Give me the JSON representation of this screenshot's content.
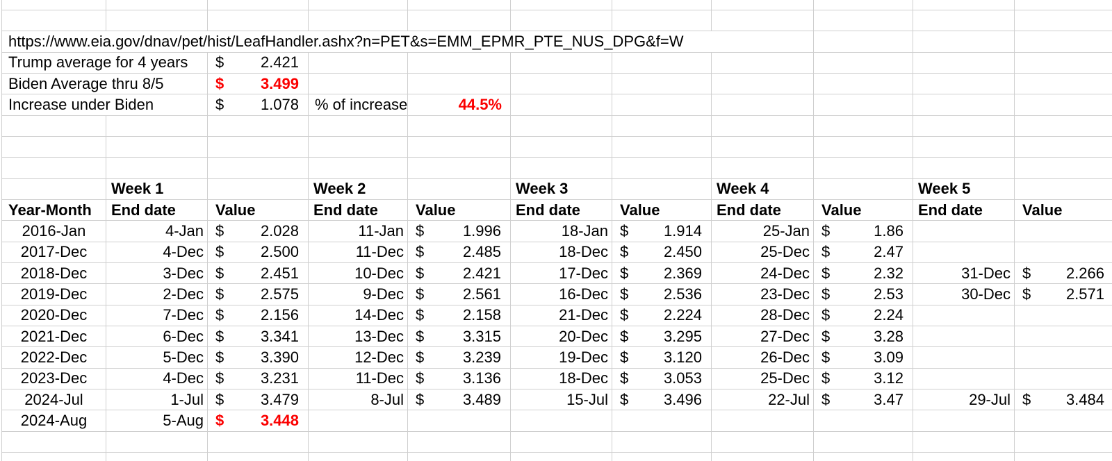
{
  "colors": {
    "text": "#000000",
    "red_accent": "#fb0000",
    "gridline": "#cfcfcf",
    "background": "#ffffff"
  },
  "currency_symbol": "$",
  "source_url": "https://www.eia.gov/dnav/pet/hist/LeafHandler.ashx?n=PET&s=EMM_EPMR_PTE_NUS_DPG&f=W",
  "summary": {
    "trump": {
      "label": "Trump average for 4 years",
      "value": "2.421"
    },
    "biden": {
      "label": "Biden Average thru 8/5",
      "value": "3.499"
    },
    "increase": {
      "label": "Increase under Biden",
      "value": "1.078"
    },
    "percent_label": "% of increase",
    "percent_value": "44.5%"
  },
  "table": {
    "week_headers": [
      "Week 1",
      "Week 2",
      "Week 3",
      "Week 4",
      "Week 5"
    ],
    "year_month_header": "Year-Month",
    "end_date_header": "End date",
    "value_header": "Value",
    "rows": [
      {
        "ym": "2016-Jan",
        "weeks": [
          {
            "d": "4-Jan",
            "v": "2.028"
          },
          {
            "d": "11-Jan",
            "v": "1.996"
          },
          {
            "d": "18-Jan",
            "v": "1.914"
          },
          {
            "d": "25-Jan",
            "v": "1.86"
          },
          null
        ]
      },
      {
        "ym": "2017-Dec",
        "weeks": [
          {
            "d": "4-Dec",
            "v": "2.500"
          },
          {
            "d": "11-Dec",
            "v": "2.485"
          },
          {
            "d": "18-Dec",
            "v": "2.450"
          },
          {
            "d": "25-Dec",
            "v": "2.47"
          },
          null
        ]
      },
      {
        "ym": "2018-Dec",
        "weeks": [
          {
            "d": "3-Dec",
            "v": "2.451"
          },
          {
            "d": "10-Dec",
            "v": "2.421"
          },
          {
            "d": "17-Dec",
            "v": "2.369"
          },
          {
            "d": "24-Dec",
            "v": "2.32"
          },
          {
            "d": "31-Dec",
            "v": "2.266"
          }
        ]
      },
      {
        "ym": "2019-Dec",
        "weeks": [
          {
            "d": "2-Dec",
            "v": "2.575"
          },
          {
            "d": "9-Dec",
            "v": "2.561"
          },
          {
            "d": "16-Dec",
            "v": "2.536"
          },
          {
            "d": "23-Dec",
            "v": "2.53"
          },
          {
            "d": "30-Dec",
            "v": "2.571"
          }
        ]
      },
      {
        "ym": "2020-Dec",
        "weeks": [
          {
            "d": "7-Dec",
            "v": "2.156"
          },
          {
            "d": "14-Dec",
            "v": "2.158"
          },
          {
            "d": "21-Dec",
            "v": "2.224"
          },
          {
            "d": "28-Dec",
            "v": "2.24"
          },
          null
        ]
      },
      {
        "ym": "2021-Dec",
        "weeks": [
          {
            "d": "6-Dec",
            "v": "3.341"
          },
          {
            "d": "13-Dec",
            "v": "3.315"
          },
          {
            "d": "20-Dec",
            "v": "3.295"
          },
          {
            "d": "27-Dec",
            "v": "3.28"
          },
          null
        ]
      },
      {
        "ym": "2022-Dec",
        "weeks": [
          {
            "d": "5-Dec",
            "v": "3.390"
          },
          {
            "d": "12-Dec",
            "v": "3.239"
          },
          {
            "d": "19-Dec",
            "v": "3.120"
          },
          {
            "d": "26-Dec",
            "v": "3.09"
          },
          null
        ]
      },
      {
        "ym": "2023-Dec",
        "weeks": [
          {
            "d": "4-Dec",
            "v": "3.231"
          },
          {
            "d": "11-Dec",
            "v": "3.136"
          },
          {
            "d": "18-Dec",
            "v": "3.053"
          },
          {
            "d": "25-Dec",
            "v": "3.12"
          },
          null
        ]
      },
      {
        "ym": "2024-Jul",
        "weeks": [
          {
            "d": "1-Jul",
            "v": "3.479"
          },
          {
            "d": "8-Jul",
            "v": "3.489"
          },
          {
            "d": "15-Jul",
            "v": "3.496"
          },
          {
            "d": "22-Jul",
            "v": "3.47"
          },
          {
            "d": "29-Jul",
            "v": "3.484"
          }
        ]
      },
      {
        "ym": "2024-Aug",
        "weeks": [
          {
            "d": "5-Aug",
            "v": "3.448"
          },
          null,
          null,
          null,
          null
        ]
      }
    ]
  }
}
